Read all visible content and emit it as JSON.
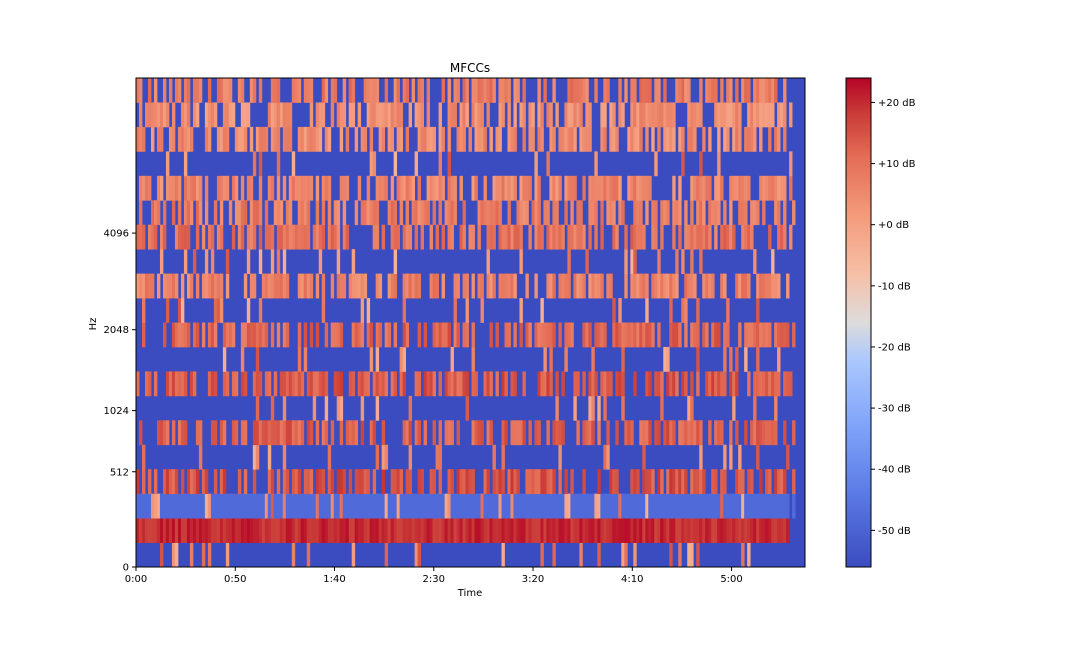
{
  "chart_data": {
    "type": "heatmap",
    "title": "MFCCs",
    "xlabel": "Time",
    "ylabel": "Hz",
    "x_ticks": [
      "0:00",
      "0:50",
      "1:40",
      "2:30",
      "3:20",
      "4:10",
      "5:00"
    ],
    "x_tick_seconds": [
      0,
      50,
      100,
      150,
      200,
      250,
      300
    ],
    "x_range_seconds": [
      0,
      337
    ],
    "y_ticks": [
      "0",
      "512",
      "1024",
      "2048",
      "4096"
    ],
    "y_tick_hz": [
      0,
      512,
      1024,
      2048,
      4096
    ],
    "y_scale": "mel",
    "n_coefficients": 20,
    "colorbar": {
      "tick_labels": [
        "+20 dB",
        "+10 dB",
        "+0 dB",
        "-10 dB",
        "-20 dB",
        "-30 dB",
        "-40 dB",
        "-50 dB"
      ],
      "tick_values": [
        20,
        10,
        0,
        -10,
        -20,
        -30,
        -40,
        -50
      ],
      "range": [
        -56,
        24
      ],
      "colormap": "coolwarm",
      "colors": [
        "#3b4cc0",
        "#7396f5",
        "#b0cbfc",
        "#dddcdc",
        "#f6bfa6",
        "#ee8468",
        "#c93a37",
        "#b40426"
      ]
    },
    "coefficient_levels_db": [
      -56,
      23,
      -48,
      13,
      -52,
      11,
      -55,
      12,
      -54,
      10,
      -50,
      5,
      -52,
      8,
      6,
      4,
      -50,
      3,
      2,
      6
    ],
    "grid": false,
    "legend": "colorbar-right"
  }
}
